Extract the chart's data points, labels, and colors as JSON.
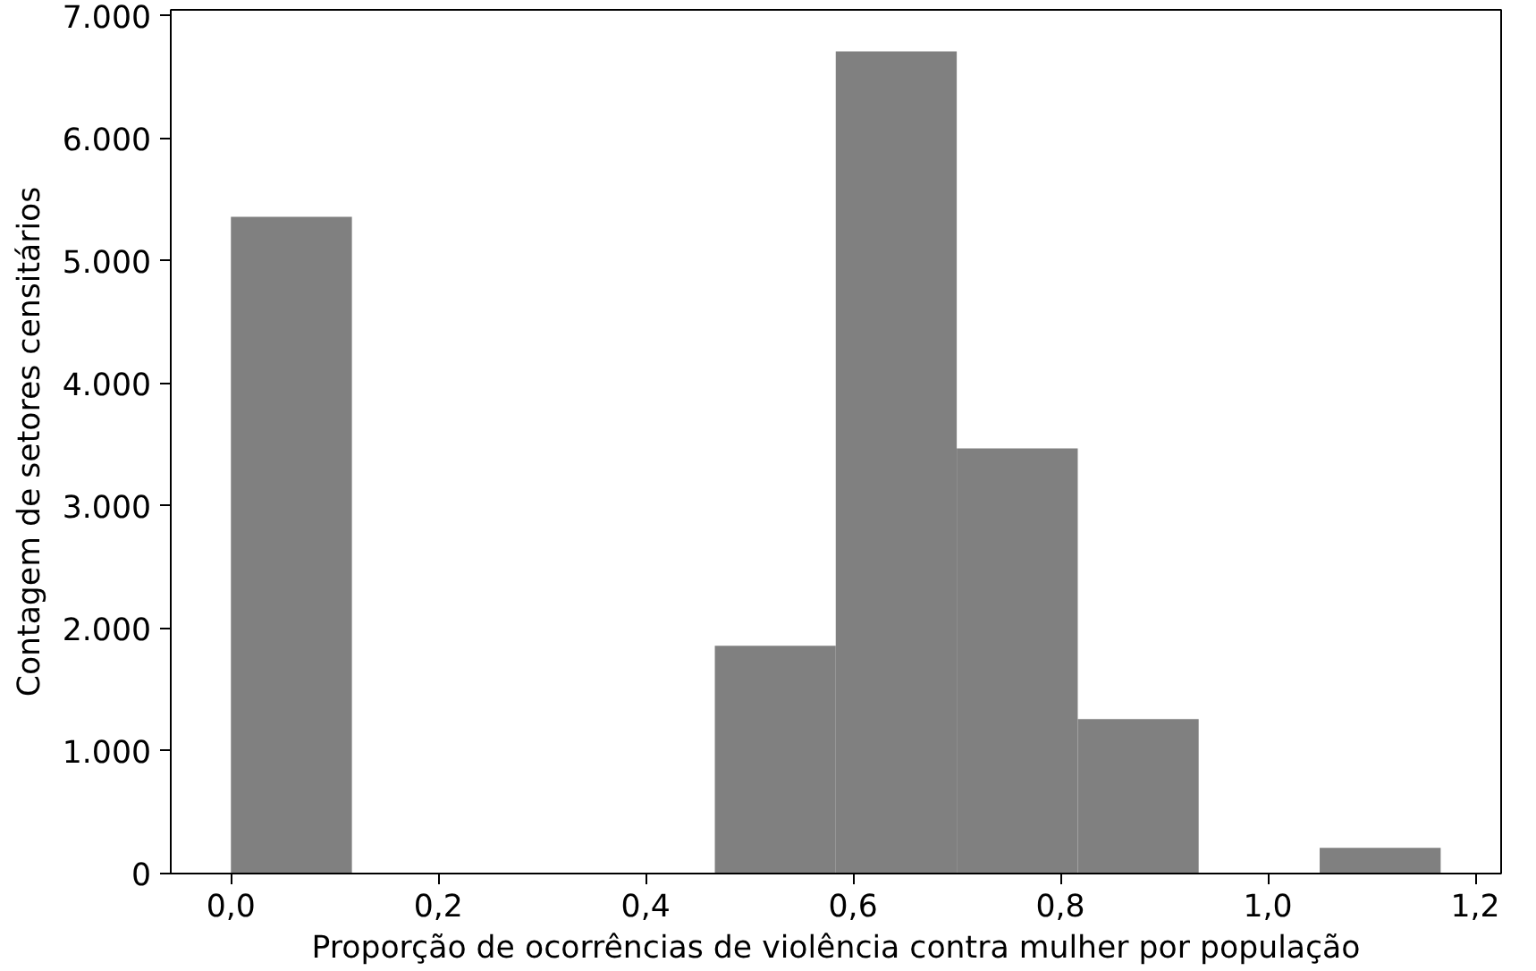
{
  "chart_data": {
    "type": "histogram",
    "xlabel": "Proporção de ocorrências de violência contra mulher por população",
    "ylabel": "Contagem de setores censitários",
    "bins": [
      0,
      0.1167,
      0.2333,
      0.35,
      0.4667,
      0.5833,
      0.7,
      0.8167,
      0.9333,
      1.05,
      1.1667
    ],
    "values": [
      5360,
      0,
      0,
      0,
      1860,
      6710,
      3470,
      1260,
      0,
      210
    ],
    "color": "#808080",
    "xlim": [
      -0.058,
      1.225
    ],
    "ylim": [
      0,
      7050
    ],
    "xticks": [
      {
        "value": 0,
        "label": "0,0"
      },
      {
        "value": 0.2,
        "label": "0,2"
      },
      {
        "value": 0.4,
        "label": "0,4"
      },
      {
        "value": 0.6,
        "label": "0,6"
      },
      {
        "value": 0.8,
        "label": "0,8"
      },
      {
        "value": 1.0,
        "label": "1,0"
      },
      {
        "value": 1.2,
        "label": "1,2"
      }
    ],
    "yticks": [
      0,
      {
        "value": 1000,
        "label": "1.000"
      },
      {
        "value": 2000,
        "label": "2.000"
      },
      {
        "value": 3000,
        "label": "3.000"
      },
      {
        "value": 4000,
        "label": "4.000"
      },
      {
        "value": 5000,
        "label": "5.000"
      },
      {
        "value": 6000,
        "label": "6.000"
      },
      {
        "value": 7000,
        "label": "7.000"
      }
    ],
    "grid": false
  }
}
